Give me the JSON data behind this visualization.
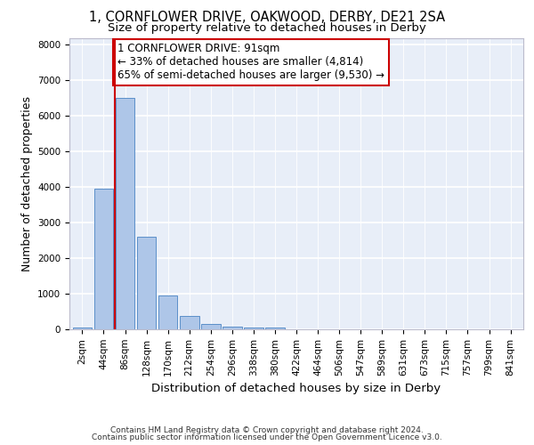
{
  "title_line1": "1, CORNFLOWER DRIVE, OAKWOOD, DERBY, DE21 2SA",
  "title_line2": "Size of property relative to detached houses in Derby",
  "xlabel": "Distribution of detached houses by size in Derby",
  "ylabel": "Number of detached properties",
  "footer_line1": "Contains HM Land Registry data © Crown copyright and database right 2024.",
  "footer_line2": "Contains public sector information licensed under the Open Government Licence v3.0.",
  "bar_categories": [
    "2sqm",
    "44sqm",
    "86sqm",
    "128sqm",
    "170sqm",
    "212sqm",
    "254sqm",
    "296sqm",
    "338sqm",
    "380sqm",
    "422sqm",
    "464sqm",
    "506sqm",
    "547sqm",
    "589sqm",
    "631sqm",
    "673sqm",
    "715sqm",
    "757sqm",
    "799sqm",
    "841sqm"
  ],
  "bar_values": [
    50,
    3950,
    6500,
    2600,
    950,
    380,
    150,
    75,
    55,
    55,
    0,
    0,
    0,
    0,
    0,
    0,
    0,
    0,
    0,
    0,
    0
  ],
  "bar_color": "#aec6e8",
  "bar_edge_color": "#5b8fc9",
  "annotation_text": "1 CORNFLOWER DRIVE: 91sqm\n← 33% of detached houses are smaller (4,814)\n65% of semi-detached houses are larger (9,530) →",
  "annotation_box_facecolor": "#ffffff",
  "annotation_box_edgecolor": "#cc0000",
  "vline_color": "#cc0000",
  "vline_x_index": 1.5,
  "ylim": [
    0,
    8200
  ],
  "yticks": [
    0,
    1000,
    2000,
    3000,
    4000,
    5000,
    6000,
    7000,
    8000
  ],
  "background_color": "#e8eef8",
  "grid_color": "#ffffff",
  "title_fontsize": 10.5,
  "subtitle_fontsize": 9.5,
  "axis_label_fontsize": 9,
  "tick_fontsize": 7.5,
  "footer_fontsize": 6.5,
  "annotation_fontsize": 8.5
}
